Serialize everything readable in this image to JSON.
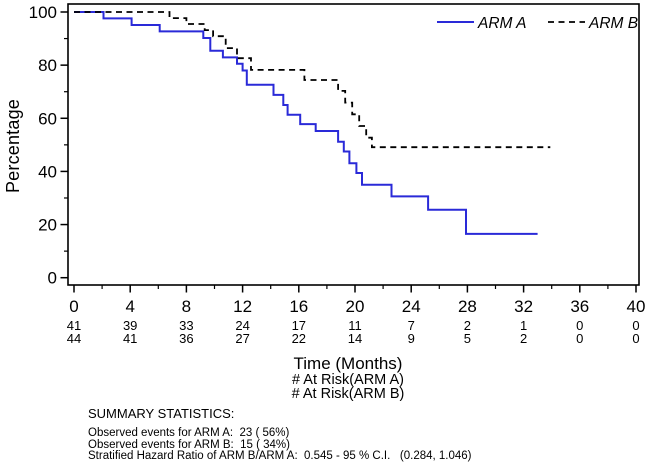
{
  "colors": {
    "arm_a": "#2a2ad8",
    "arm_b": "#000000",
    "frame": "#000000",
    "background": "#ffffff"
  },
  "chart_data": {
    "type": "line",
    "subtype": "kaplan-meier-step",
    "title": "",
    "xlabel": "Time (Months)",
    "ylabel": "Percentage",
    "grid": false,
    "x_axis": {
      "min": 0,
      "max": 40,
      "major_ticks": [
        0,
        4,
        8,
        12,
        16,
        20,
        24,
        28,
        32,
        36,
        40
      ],
      "minor_ticks": [
        2,
        6,
        10,
        14,
        18,
        22,
        26,
        30,
        34,
        38
      ]
    },
    "y_axis": {
      "min": 0,
      "max": 100,
      "major_ticks": [
        0,
        20,
        40,
        60,
        80,
        100
      ],
      "minor_ticks": [
        10,
        30,
        50,
        70,
        90
      ]
    },
    "legend": {
      "position": "top-right-inside",
      "items": [
        {
          "label": "ARM A",
          "line_style": "solid",
          "color_key": "arm_a"
        },
        {
          "label": "ARM B",
          "line_style": "dashed",
          "color_key": "arm_b"
        }
      ]
    },
    "series": [
      {
        "name": "ARM A",
        "color_key": "arm_a",
        "line_style": "solid",
        "points": [
          {
            "t": 0,
            "pct": 100
          },
          {
            "t": 2.1,
            "pct": 97.6
          },
          {
            "t": 4.1,
            "pct": 95.1
          },
          {
            "t": 6.1,
            "pct": 92.7
          },
          {
            "t": 9.2,
            "pct": 90.2
          },
          {
            "t": 9.7,
            "pct": 85.4
          },
          {
            "t": 10.6,
            "pct": 82.9
          },
          {
            "t": 11.6,
            "pct": 80.5
          },
          {
            "t": 12.0,
            "pct": 78.0
          },
          {
            "t": 12.3,
            "pct": 72.6
          },
          {
            "t": 14.2,
            "pct": 68.8
          },
          {
            "t": 14.9,
            "pct": 65.0
          },
          {
            "t": 15.2,
            "pct": 61.3
          },
          {
            "t": 16.1,
            "pct": 57.8
          },
          {
            "t": 17.2,
            "pct": 55.2
          },
          {
            "t": 18.8,
            "pct": 51.2
          },
          {
            "t": 19.2,
            "pct": 47.5
          },
          {
            "t": 19.6,
            "pct": 43.1
          },
          {
            "t": 20.1,
            "pct": 39.4
          },
          {
            "t": 20.5,
            "pct": 35.0
          },
          {
            "t": 22.6,
            "pct": 30.6
          },
          {
            "t": 25.2,
            "pct": 25.6
          },
          {
            "t": 27.9,
            "pct": 16.5
          },
          {
            "t": 33.0,
            "pct": 16.5
          }
        ]
      },
      {
        "name": "ARM B",
        "color_key": "arm_b",
        "line_style": "dashed",
        "points": [
          {
            "t": 0,
            "pct": 100
          },
          {
            "t": 6.8,
            "pct": 97.7
          },
          {
            "t": 8.0,
            "pct": 95.5
          },
          {
            "t": 9.3,
            "pct": 93.2
          },
          {
            "t": 9.9,
            "pct": 90.9
          },
          {
            "t": 10.8,
            "pct": 86.4
          },
          {
            "t": 11.6,
            "pct": 82.6
          },
          {
            "t": 12.6,
            "pct": 78.2
          },
          {
            "t": 16.4,
            "pct": 74.4
          },
          {
            "t": 18.8,
            "pct": 70.3
          },
          {
            "t": 19.3,
            "pct": 65.9
          },
          {
            "t": 19.8,
            "pct": 61.5
          },
          {
            "t": 20.3,
            "pct": 57.1
          },
          {
            "t": 20.8,
            "pct": 52.7
          },
          {
            "t": 21.2,
            "pct": 49.1
          },
          {
            "t": 33.9,
            "pct": 49.1
          }
        ]
      }
    ],
    "at_risk": {
      "months": [
        0,
        4,
        8,
        12,
        16,
        20,
        24,
        28,
        32,
        36,
        40
      ],
      "rows": [
        {
          "caption": "# At Risk(ARM A)",
          "values": [
            41,
            39,
            33,
            24,
            17,
            11,
            7,
            2,
            1,
            0,
            0
          ]
        },
        {
          "caption": "# At Risk(ARM B)",
          "values": [
            44,
            41,
            36,
            27,
            22,
            14,
            9,
            5,
            2,
            0,
            0
          ]
        }
      ]
    }
  },
  "summary": {
    "title": "SUMMARY STATISTICS:",
    "lines": [
      "Observed events for ARM A:  23 ( 56%)",
      "Observed events for ARM B:  15 ( 34%)",
      "Stratified Hazard Ratio of ARM B/ARM A:  0.545 - 95 % C.I.   (0.284, 1.046)"
    ]
  }
}
